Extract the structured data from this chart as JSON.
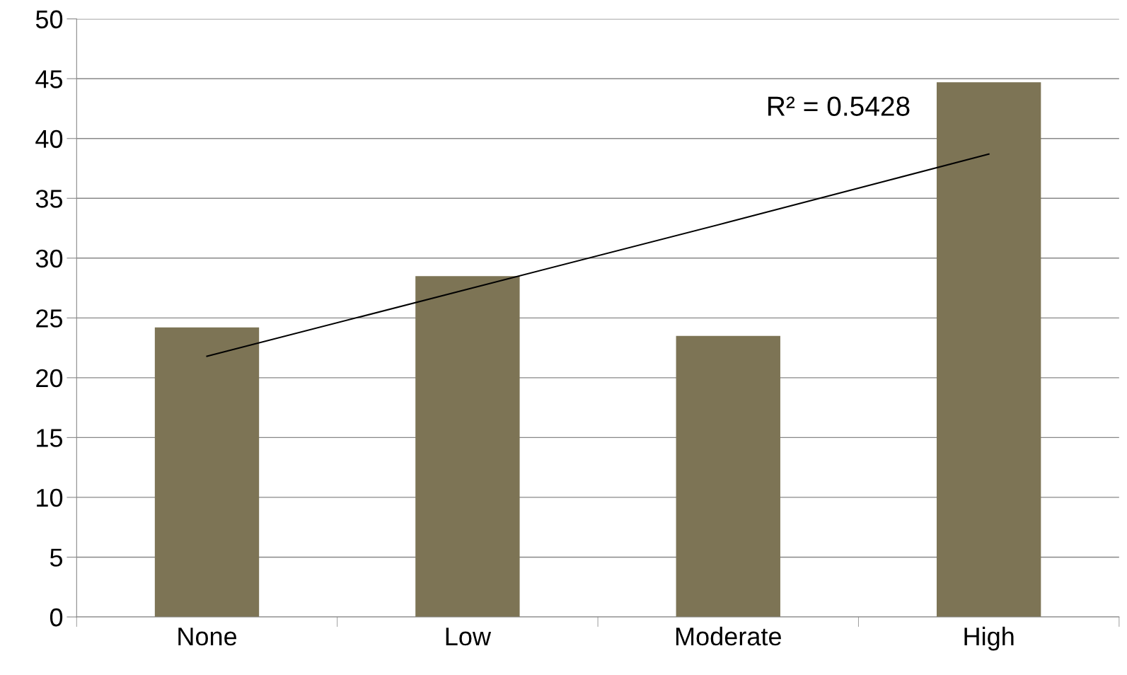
{
  "chart_data": {
    "type": "bar",
    "categories": [
      "None",
      "Low",
      "Moderate",
      "High"
    ],
    "series": [
      {
        "color": "#7d7455",
        "values": [
          24.2,
          28.5,
          23.5,
          44.7
        ]
      },
      {
        "type": "line",
        "color": "#000000",
        "values": [
          21.8,
          27.4,
          33.0,
          38.7
        ]
      }
    ],
    "annotations": [
      "R² = 0.5428"
    ],
    "ylim": [
      0,
      50
    ],
    "yticks": [
      0,
      5,
      10,
      15,
      20,
      25,
      30,
      35,
      40,
      45,
      50
    ],
    "grid": "y",
    "legend": false
  }
}
